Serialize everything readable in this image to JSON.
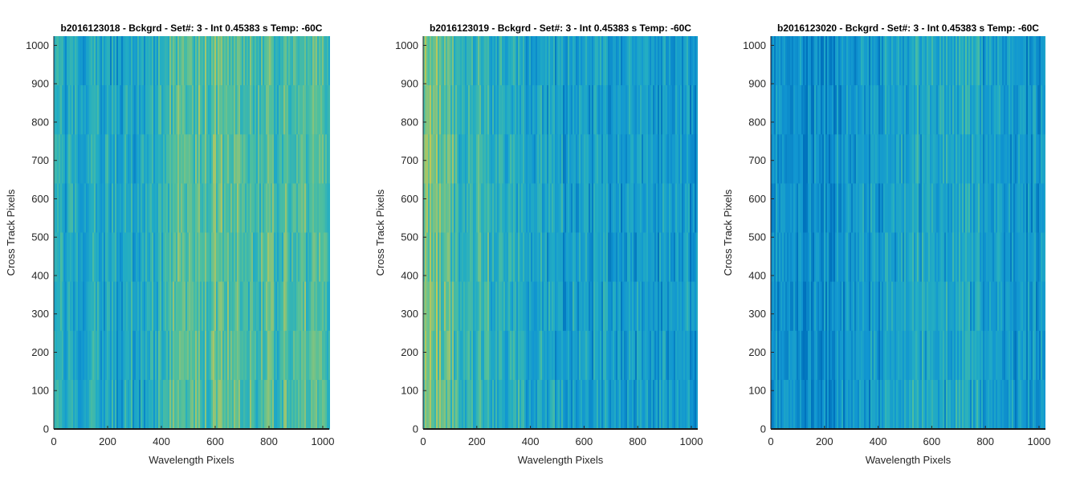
{
  "chart_data": [
    {
      "type": "heatmap",
      "title": "b2016123018 - Bckgrd - Set#: 3 - Int 0.45383 s Temp: -60C",
      "xlabel": "Wavelength Pixels",
      "ylabel": "Cross Track Pixels",
      "xlim": [
        0,
        1024
      ],
      "ylim": [
        0,
        1024
      ],
      "xticks": [
        "0",
        "200",
        "400",
        "600",
        "800",
        "1000"
      ],
      "yticks": [
        "0",
        "100",
        "200",
        "300",
        "400",
        "500",
        "600",
        "700",
        "800",
        "900",
        "1000"
      ],
      "colormap": "parula",
      "colors": [
        "#0072bd",
        "#1196d1",
        "#23adc3",
        "#4fbf9e",
        "#9ec56e",
        "#cdc94a"
      ],
      "column_profile": {
        "x": [
          0,
          100,
          200,
          300,
          400,
          440,
          480,
          520,
          600,
          700,
          800,
          900,
          1000,
          1024
        ],
        "level": [
          0.35,
          0.33,
          0.32,
          0.34,
          0.38,
          0.58,
          0.68,
          0.65,
          0.6,
          0.58,
          0.57,
          0.58,
          0.6,
          0.58
        ]
      }
    },
    {
      "type": "heatmap",
      "title": "b2016123019 - Bckgrd - Set#: 3 - Int 0.45383 s Temp: -60C",
      "xlabel": "Wavelength Pixels",
      "ylabel": "Cross Track Pixels",
      "xlim": [
        0,
        1024
      ],
      "ylim": [
        0,
        1024
      ],
      "xticks": [
        "0",
        "200",
        "400",
        "600",
        "800",
        "1000"
      ],
      "yticks": [
        "0",
        "100",
        "200",
        "300",
        "400",
        "500",
        "600",
        "700",
        "800",
        "900",
        "1000"
      ],
      "colormap": "parula",
      "colors": [
        "#0072bd",
        "#1196d1",
        "#23adc3",
        "#4fbf9e",
        "#9ec56e",
        "#cdc94a"
      ],
      "column_profile": {
        "x": [
          0,
          30,
          80,
          150,
          250,
          350,
          450,
          550,
          650,
          750,
          850,
          950,
          1024
        ],
        "level": [
          0.72,
          0.75,
          0.62,
          0.5,
          0.44,
          0.38,
          0.32,
          0.26,
          0.26,
          0.25,
          0.24,
          0.24,
          0.24
        ]
      }
    },
    {
      "type": "heatmap",
      "title": "b2016123020 - Bckgrd - Set#: 3 - Int 0.45383 s Temp: -60C",
      "xlabel": "Wavelength Pixels",
      "ylabel": "Cross Track Pixels",
      "xlim": [
        0,
        1024
      ],
      "ylim": [
        0,
        1024
      ],
      "xticks": [
        "0",
        "200",
        "400",
        "600",
        "800",
        "1000"
      ],
      "yticks": [
        "0",
        "100",
        "200",
        "300",
        "400",
        "500",
        "600",
        "700",
        "800",
        "900",
        "1000"
      ],
      "colormap": "parula",
      "colors": [
        "#0072bd",
        "#1196d1",
        "#23adc3",
        "#4fbf9e",
        "#9ec56e",
        "#cdc94a"
      ],
      "column_profile": {
        "x": [
          0,
          100,
          200,
          300,
          400,
          500,
          550,
          650,
          700,
          800,
          900,
          1000,
          1024
        ],
        "level": [
          0.2,
          0.17,
          0.16,
          0.2,
          0.26,
          0.33,
          0.36,
          0.34,
          0.36,
          0.28,
          0.22,
          0.2,
          0.2
        ]
      }
    }
  ]
}
